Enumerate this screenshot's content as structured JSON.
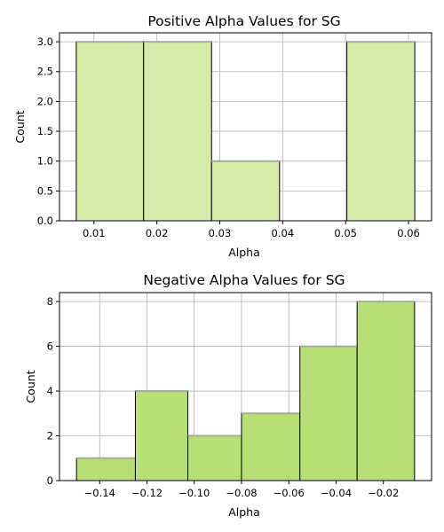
{
  "chart_data": [
    {
      "type": "bar",
      "title": "Positive Alpha Values for SG",
      "xlabel": "Alpha",
      "ylabel": "Count",
      "bins": [
        {
          "x0": 0.0072,
          "x1": 0.0179,
          "count": 3
        },
        {
          "x0": 0.0179,
          "x1": 0.0287,
          "count": 3
        },
        {
          "x0": 0.0287,
          "x1": 0.0395,
          "count": 1
        },
        {
          "x0": 0.0395,
          "x1": 0.0502,
          "count": 0
        },
        {
          "x0": 0.0502,
          "x1": 0.061,
          "count": 3
        }
      ],
      "xlim": [
        0.00453,
        0.06366
      ],
      "ylim": [
        0,
        3.15
      ],
      "xticks": [
        0.01,
        0.02,
        0.03,
        0.04,
        0.05,
        0.06
      ],
      "xtick_labels": [
        "0.01",
        "0.02",
        "0.03",
        "0.04",
        "0.05",
        "0.06"
      ],
      "yticks": [
        0,
        0.5,
        1,
        1.5,
        2,
        2.5,
        3
      ],
      "ytick_labels": [
        "0.0",
        "0.5",
        "1.0",
        "1.5",
        "2.0",
        "2.5",
        "3.0"
      ],
      "grid": true,
      "color": "#d4ecaa"
    },
    {
      "type": "bar",
      "title": "Negative Alpha Values for SG",
      "xlabel": "Alpha",
      "ylabel": "Count",
      "bins": [
        {
          "x0": -0.1498,
          "x1": -0.1249,
          "count": 1
        },
        {
          "x0": -0.1249,
          "x1": -0.1027,
          "count": 4
        },
        {
          "x0": -0.1027,
          "x1": -0.08,
          "count": 2
        },
        {
          "x0": -0.08,
          "x1": -0.0553,
          "count": 3
        },
        {
          "x0": -0.0553,
          "x1": -0.0311,
          "count": 6
        },
        {
          "x0": -0.0311,
          "x1": -0.0068,
          "count": 8
        }
      ],
      "xlim": [
        -0.157,
        0.0004
      ],
      "ylim": [
        0,
        8.4
      ],
      "xticks": [
        -0.14,
        -0.12,
        -0.1,
        -0.08,
        -0.06,
        -0.04,
        -0.02
      ],
      "xtick_labels": [
        "−0.14",
        "−0.12",
        "−0.10",
        "−0.08",
        "−0.06",
        "−0.04",
        "−0.02"
      ],
      "yticks": [
        0,
        2,
        4,
        6,
        8
      ],
      "ytick_labels": [
        "0",
        "2",
        "4",
        "6",
        "8"
      ],
      "grid": true,
      "color": "#b8df76"
    }
  ]
}
